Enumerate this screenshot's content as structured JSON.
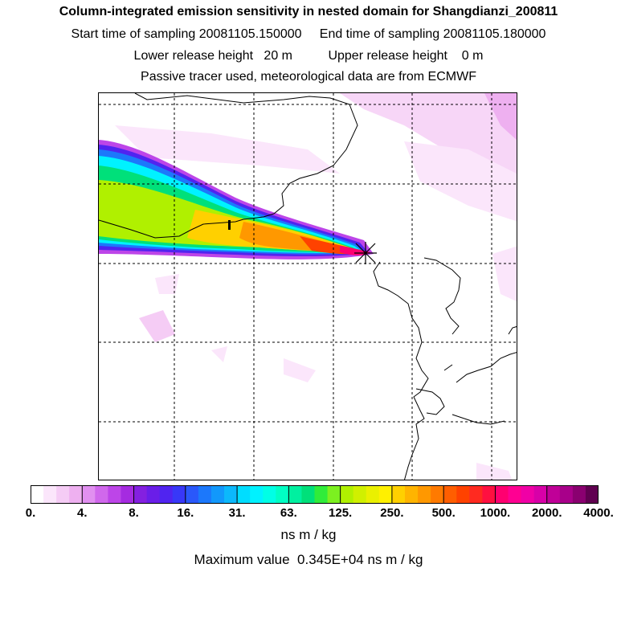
{
  "header": {
    "title": "Column-integrated emission sensitivity in nested domain for Shangdianzi_200811",
    "line2": "Start time of sampling 20081105.150000     End time of sampling 20081105.180000",
    "line3": "Lower release height   20 m          Upper release height    0 m",
    "line4": "Passive tracer used, meteorological data are from ECMWF"
  },
  "chart_data": {
    "type": "heatmap",
    "title": "Column-integrated emission sensitivity in nested domain for Shangdianzi_200811",
    "colorbar": {
      "tick_labels": [
        "0.",
        "4.",
        "8.",
        "16.",
        "31.",
        "63.",
        "125.",
        "250.",
        "500.",
        "1000.",
        "2000.",
        "4000."
      ],
      "units": "ns m / kg",
      "colors": [
        "#ffffff",
        "#fbe6fb",
        "#f5ccf5",
        "#eeb0f0",
        "#e190f0",
        "#d068ec",
        "#bd45e8",
        "#a52be0",
        "#8420e0",
        "#6a1ee8",
        "#5024f0",
        "#3838f8",
        "#2a58fa",
        "#1c78fb",
        "#1298fb",
        "#0cb8fb",
        "#00ddff",
        "#00f2ff",
        "#00ffe6",
        "#00ffc4",
        "#00f0a0",
        "#00e07a",
        "#30ec3a",
        "#7cf020",
        "#b0f000",
        "#d0f000",
        "#eaf000",
        "#fff000",
        "#ffd000",
        "#ffb400",
        "#ff9800",
        "#ff7a00",
        "#ff5e00",
        "#ff4200",
        "#ff2a20",
        "#ff1040",
        "#ff0070",
        "#ff0092",
        "#f000a6",
        "#d800a8",
        "#c00098",
        "#a8008a",
        "#8a0070",
        "#600050"
      ]
    },
    "max_value": 3450,
    "receptor": "Shangdianzi"
  },
  "footer": {
    "max_label": "Maximum value  0.345E+04 ns m / kg"
  }
}
